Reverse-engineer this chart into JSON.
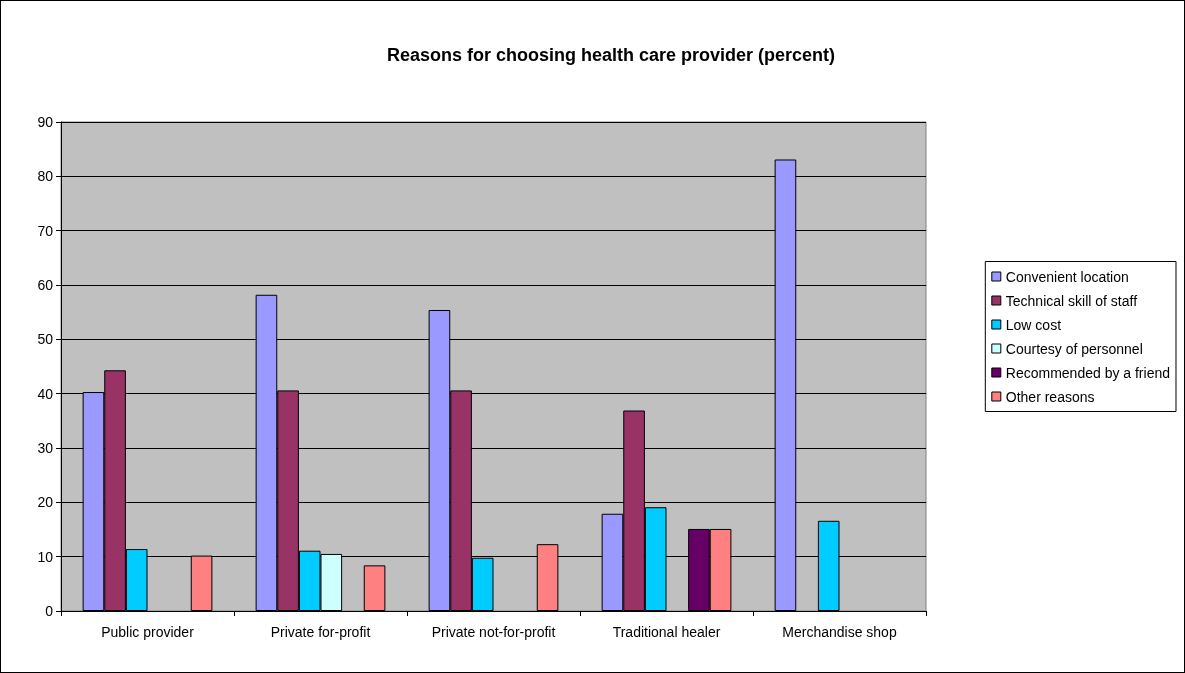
{
  "chart_data": {
    "type": "bar",
    "title": "Reasons for choosing health care provider (percent)",
    "categories": [
      "Public provider",
      "Private for-profit",
      "Private not-for-profit",
      "Traditional healer",
      "Merchandise shop"
    ],
    "series": [
      {
        "name": "Convenient location",
        "color": "#9999ff",
        "values": [
          40.3,
          58.2,
          55.4,
          17.9,
          83.1
        ]
      },
      {
        "name": "Technical skill of staff",
        "color": "#993366",
        "values": [
          44.3,
          40.6,
          40.6,
          36.9,
          null
        ]
      },
      {
        "name": "Low cost",
        "color": "#00ccff",
        "values": [
          11.4,
          11.1,
          9.8,
          19.1,
          16.6
        ]
      },
      {
        "name": "Courtesy of personnel",
        "color": "#ccffff",
        "values": [
          null,
          10.5,
          null,
          null,
          null
        ]
      },
      {
        "name": "Recommended by a friend",
        "color": "#660066",
        "values": [
          null,
          null,
          null,
          15.1,
          null
        ]
      },
      {
        "name": "Other reasons",
        "color": "#ff8080",
        "values": [
          10.2,
          8.4,
          12.3,
          15.1,
          null
        ]
      }
    ],
    "ylim": [
      0,
      90
    ],
    "yticks": [
      0,
      10,
      20,
      30,
      40,
      50,
      60,
      70,
      80,
      90
    ],
    "grid": "y",
    "legend": "right"
  }
}
